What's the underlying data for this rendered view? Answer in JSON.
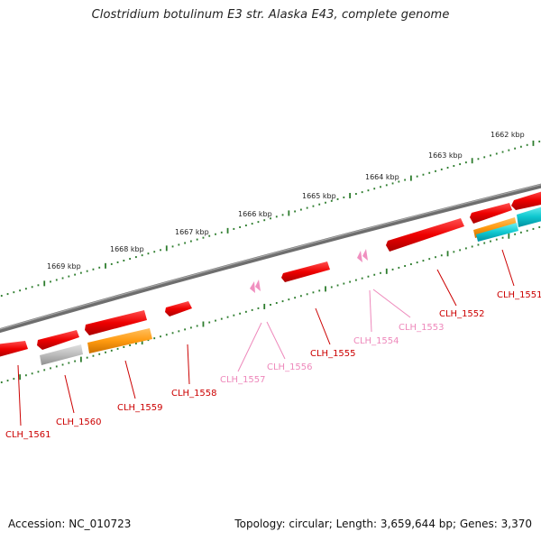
{
  "title": "Clostridium botulinum E3 str. Alaska E43, complete genome",
  "footer": {
    "accession": "Accession: NC_010723",
    "summary": "Topology: circular; Length: 3,659,644 bp; Genes: 3,370"
  },
  "scale_labels": [
    "1669 kbp",
    "1668 kbp",
    "1667 kbp",
    "1666 kbp",
    "1665 kbp",
    "1664 kbp",
    "1663 kbp",
    "1662 kbp"
  ],
  "genes": [
    {
      "label": "CLH_1561",
      "color": "#cc0000"
    },
    {
      "label": "CLH_1560",
      "color": "#cc0000"
    },
    {
      "label": "CLH_1559",
      "color": "#cc0000"
    },
    {
      "label": "CLH_1558",
      "color": "#cc0000"
    },
    {
      "label": "CLH_1557",
      "color": "#ee88bb"
    },
    {
      "label": "CLH_1556",
      "color": "#ee88bb"
    },
    {
      "label": "CLH_1555",
      "color": "#cc0000"
    },
    {
      "label": "CLH_1554",
      "color": "#ee88bb"
    },
    {
      "label": "CLH_1553",
      "color": "#ee88bb"
    },
    {
      "label": "CLH_1552",
      "color": "#cc0000"
    },
    {
      "label": "CLH_1551",
      "color": "#cc0000"
    }
  ]
}
